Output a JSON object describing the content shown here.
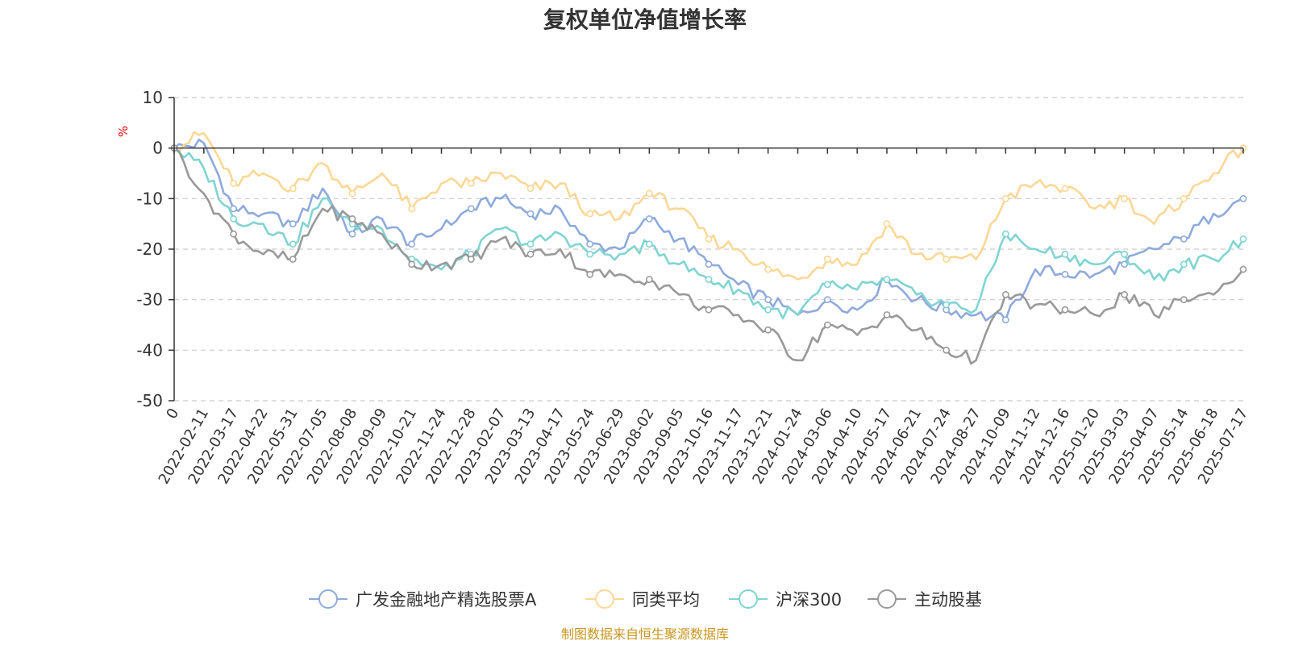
{
  "chart_data": {
    "type": "line",
    "title": "复权单位净值增长率",
    "y_unit": "%",
    "ylim": [
      -50,
      10
    ],
    "y_ticks": [
      "10",
      "0",
      "-10",
      "-20",
      "-30",
      "-40",
      "-50"
    ],
    "grid": true,
    "legend_position": "bottom",
    "x_tick_labels": [
      "0",
      "2022-02-11",
      "2022-03-17",
      "2022-04-22",
      "2022-05-31",
      "2022-07-05",
      "2022-08-08",
      "2022-09-09",
      "2022-10-21",
      "2022-11-24",
      "2022-12-28",
      "2023-02-07",
      "2023-03-13",
      "2023-04-17",
      "2023-05-24",
      "2023-06-29",
      "2023-08-02",
      "2023-09-05",
      "2023-10-16",
      "2023-11-17",
      "2023-12-21",
      "2024-01-24",
      "2024-03-06",
      "2024-04-10",
      "2024-05-17",
      "2024-06-21",
      "2024-07-24",
      "2024-08-27",
      "2024-10-09",
      "2024-11-12",
      "2024-12-16",
      "2025-01-20",
      "2025-03-03",
      "2025-04-07",
      "2025-05-14",
      "2025-06-18",
      "2025-07-17"
    ],
    "series": [
      {
        "name": "广发金融地产精选股票A",
        "color": "#8eaadc",
        "values": [
          0,
          1,
          -12,
          -13,
          -15,
          -8,
          -17,
          -14,
          -19,
          -16,
          -12,
          -10,
          -13,
          -12,
          -19,
          -20,
          -14,
          -18,
          -23,
          -27,
          -30,
          -33,
          -30,
          -32,
          -26,
          -30,
          -32,
          -33,
          -34,
          -24,
          -25,
          -25,
          -23,
          -20,
          -18,
          -13,
          -10
        ]
      },
      {
        "name": "同类平均",
        "color": "#fcd795",
        "values": [
          0,
          3,
          -7,
          -5,
          -8,
          -3,
          -9,
          -5,
          -12,
          -7,
          -7,
          -5,
          -8,
          -7,
          -13,
          -14,
          -9,
          -12,
          -18,
          -20,
          -24,
          -26,
          -22,
          -23,
          -15,
          -21,
          -22,
          -22,
          -10,
          -7,
          -8,
          -12,
          -10,
          -15,
          -10,
          -5,
          0
        ]
      },
      {
        "name": "沪深300",
        "color": "#80d4d2",
        "values": [
          0,
          -4,
          -14,
          -15,
          -19,
          -10,
          -15,
          -16,
          -22,
          -24,
          -21,
          -16,
          -19,
          -17,
          -21,
          -21,
          -19,
          -23,
          -26,
          -28,
          -32,
          -33,
          -27,
          -28,
          -26,
          -29,
          -31,
          -32,
          -17,
          -20,
          -21,
          -23,
          -21,
          -26,
          -23,
          -22,
          -18
        ]
      },
      {
        "name": "主动股基",
        "color": "#999999",
        "values": [
          0,
          -9,
          -17,
          -21,
          -22,
          -12,
          -14,
          -17,
          -23,
          -23,
          -22,
          -18,
          -21,
          -20,
          -25,
          -25,
          -26,
          -29,
          -32,
          -33,
          -36,
          -42,
          -35,
          -37,
          -33,
          -36,
          -40,
          -42,
          -29,
          -31,
          -32,
          -33,
          -29,
          -33,
          -30,
          -29,
          -24
        ]
      }
    ],
    "source_note": "制图数据来自恒生聚源数据库"
  }
}
